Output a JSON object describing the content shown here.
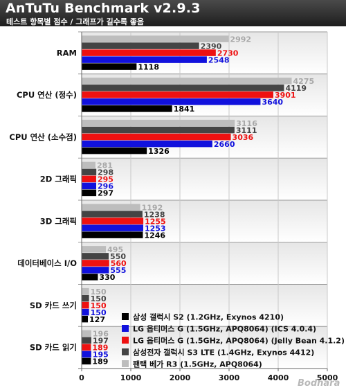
{
  "header": {
    "title": "AnTuTu Benchmark v2.9.3",
    "subtitle": "테스트 항목별 점수 / 그래프가 길수록 좋음"
  },
  "watermark": "Bodnara",
  "chart_data": {
    "type": "bar",
    "orientation": "horizontal",
    "categories": [
      "RAM",
      "CPU 연산 (정수)",
      "CPU 연산 (소수점)",
      "2D 그래픽",
      "3D 그래픽",
      "데이터베이스 I/O",
      "SD 카드 쓰기",
      "SD 카드 읽기"
    ],
    "series": [
      {
        "name": "팬택 베가 R3 (1.5GHz, APQ8064)",
        "color": "#bdbdbd",
        "values": [
          2992,
          4275,
          3116,
          281,
          1192,
          495,
          150,
          196
        ]
      },
      {
        "name": "삼성전자 갤럭시 S3 LTE (1.4GHz, Exynos 4412)",
        "color": "#444444",
        "values": [
          2390,
          4119,
          3111,
          298,
          1238,
          550,
          150,
          197
        ]
      },
      {
        "name": "LG 옵티머스 G (1.5GHz, APQ8064) (Jelly Bean 4.1.2)",
        "color": "#ee1111",
        "values": [
          2730,
          3901,
          3036,
          295,
          1255,
          560,
          150,
          189
        ]
      },
      {
        "name": "LG 옵티머스 G (1.5GHz, APQ8064) (ICS 4.0.4)",
        "color": "#1111dd",
        "values": [
          2548,
          3640,
          2660,
          296,
          1253,
          555,
          150,
          195
        ]
      },
      {
        "name": "삼성 갤럭시 S2 (1.2GHz, Exynos 4210)",
        "color": "#000000",
        "values": [
          1118,
          1841,
          1326,
          297,
          1246,
          330,
          127,
          189
        ]
      }
    ],
    "legend_order": [
      4,
      3,
      2,
      1,
      0
    ],
    "xlim": [
      0,
      5000
    ],
    "xticks": [
      "0",
      "1000",
      "2000",
      "3000",
      "4000",
      "5000"
    ],
    "grid": true,
    "legend_position": "bottom-right"
  }
}
